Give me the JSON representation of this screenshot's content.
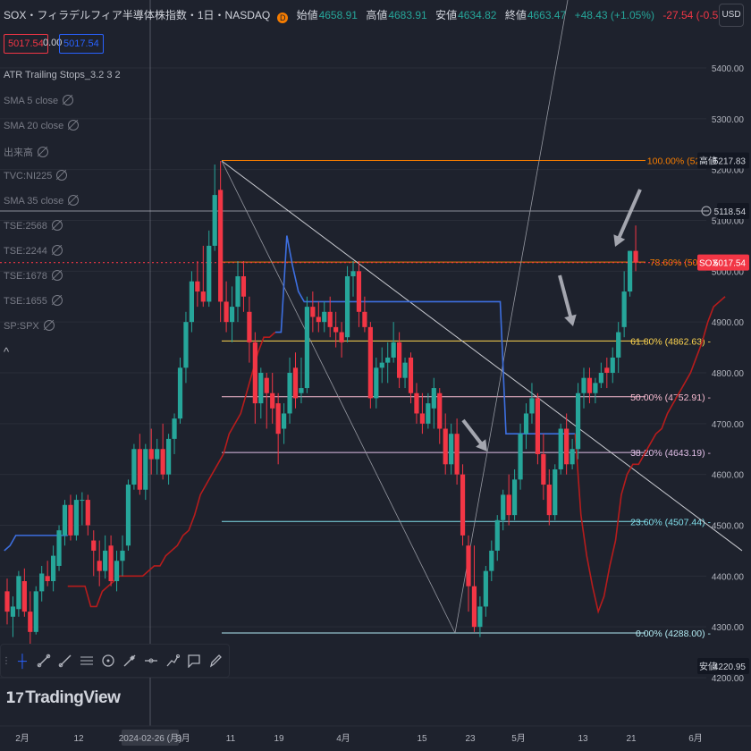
{
  "header": {
    "symbol_title": "SOX・フィラデルフィア半導体株指数・1日・NASDAQ",
    "badge": "D",
    "open_label": "始値",
    "open": "4658.91",
    "high_label": "高値",
    "high": "4683.91",
    "low_label": "安値",
    "low": "4634.82",
    "close_label": "終値",
    "close": "4663.47",
    "change": "+48.43 (+1.05%)",
    "change2": "-27.54 (-0.55%)"
  },
  "price_boxes": {
    "left": "5017.54",
    "mid": "0.00",
    "right": "5017.54"
  },
  "indicators": [
    {
      "label": "ATR Trailing Stops_3.2 3 2",
      "visible": true
    },
    {
      "label": "SMA 5 close",
      "visible": false
    },
    {
      "label": "SMA 20 close",
      "visible": false
    },
    {
      "label": "出来高",
      "visible": false
    },
    {
      "label": "TVC:NI225",
      "visible": false
    },
    {
      "label": "SMA 35 close",
      "visible": false
    },
    {
      "label": "TSE:2568",
      "visible": false
    },
    {
      "label": "TSE:2244",
      "visible": false
    },
    {
      "label": "TSE:1678",
      "visible": false
    },
    {
      "label": "TSE:1655",
      "visible": false
    },
    {
      "label": "SP:SPX",
      "visible": false
    }
  ],
  "currency_button": "USD",
  "collapse_icon": "^",
  "toolbar_icons": [
    "dots-handle-icon",
    "crosshair-icon",
    "trendline-icon",
    "ray-icon",
    "parallel-channel-icon",
    "circle-icon",
    "brush-icon",
    "measure-icon",
    "path-icon",
    "callout-icon",
    "pencil-icon"
  ],
  "logo_text": "TradingView",
  "colors": {
    "bg": "#1e222d",
    "up": "#26a69a",
    "down": "#f23645",
    "atr_up": "#3d6fe0",
    "atr_down": "#b71c1c"
  },
  "chart_data": {
    "type": "candlestick",
    "y_axis": {
      "ticks": [
        5400,
        5300,
        5200,
        5100,
        5000,
        4900,
        4800,
        4700,
        4600,
        4500,
        4400,
        4300,
        4200
      ],
      "labels": [
        "5400.00",
        "5300.00",
        "5200.00",
        "5100.00",
        "5000.00",
        "4900.00",
        "4800.00",
        "4700.00",
        "4600.00",
        "4500.00",
        "4400.00",
        "4300.00",
        "4200.00"
      ],
      "range": [
        4150,
        5550
      ]
    },
    "x_axis": {
      "labels": [
        "2月",
        "12",
        "2024-02-26 (月)",
        "3月",
        "11",
        "19",
        "4月",
        "15",
        "23",
        "5月",
        "13",
        "21",
        "6月"
      ]
    },
    "fib_levels": [
      {
        "ratio": 1.0,
        "label": "100.00% (5217",
        "price": 5217.83,
        "color": "#f57c00"
      },
      {
        "ratio": 0.786,
        "label": "78.60% (5018.",
        "price": 5018.0,
        "color": "#f57c00"
      },
      {
        "ratio": 0.618,
        "label": "61.80% (4862.63)",
        "price": 4862.63,
        "color": "#ffd54f"
      },
      {
        "ratio": 0.5,
        "label": "50.00% (4752.91)",
        "price": 4752.91,
        "color": "#f8bbd0"
      },
      {
        "ratio": 0.382,
        "label": "38.20% (4643.19)",
        "price": 4643.19,
        "color": "#e1bee7"
      },
      {
        "ratio": 0.236,
        "label": "23.60% (4507.44)",
        "price": 4507.44,
        "color": "#80deea"
      },
      {
        "ratio": 0.0,
        "label": "0.00% (4288.00)",
        "price": 4288.0,
        "color": "#b2ebf2"
      }
    ],
    "axis_badges": [
      {
        "label": "高値",
        "value": "5217.83",
        "bg": "#131722",
        "color": "#d1d4dc"
      },
      {
        "label": "",
        "value": "5118.54",
        "bg": "#131722",
        "color": "#d1d4dc"
      },
      {
        "label": "SOX",
        "value": "5017.54",
        "bg": "#f23645",
        "color": "#ffffff"
      },
      {
        "label": "安値",
        "value": "4220.95",
        "bg": "#131722",
        "color": "#d1d4dc"
      }
    ],
    "hline": 5118.54,
    "candles": [
      [
        4370,
        4395,
        4305,
        4330
      ],
      [
        4320,
        4360,
        4280,
        4340
      ],
      [
        4335,
        4410,
        4320,
        4400
      ],
      [
        4390,
        4415,
        4320,
        4330
      ],
      [
        4330,
        4370,
        4250,
        4290
      ],
      [
        4290,
        4380,
        4285,
        4370
      ],
      [
        4370,
        4420,
        4350,
        4405
      ],
      [
        4400,
        4430,
        4380,
        4390
      ],
      [
        4390,
        4460,
        4370,
        4440
      ],
      [
        4420,
        4500,
        4410,
        4490
      ],
      [
        4480,
        4550,
        4460,
        4540
      ],
      [
        4540,
        4560,
        4470,
        4480
      ],
      [
        4480,
        4560,
        4470,
        4550
      ],
      [
        4550,
        4565,
        4500,
        4550
      ],
      [
        4550,
        4560,
        4480,
        4500
      ],
      [
        4470,
        4490,
        4400,
        4450
      ],
      [
        4430,
        4470,
        4380,
        4410
      ],
      [
        4410,
        4480,
        4395,
        4450
      ],
      [
        4460,
        4480,
        4380,
        4390
      ],
      [
        4390,
        4450,
        4370,
        4430
      ],
      [
        4430,
        4480,
        4400,
        4450
      ],
      [
        4460,
        4590,
        4450,
        4580
      ],
      [
        4580,
        4660,
        4570,
        4650
      ],
      [
        4650,
        4680,
        4560,
        4570
      ],
      [
        4570,
        4660,
        4550,
        4650
      ],
      [
        4650,
        4690,
        4600,
        4630
      ],
      [
        4630,
        4670,
        4600,
        4650
      ],
      [
        4650,
        4700,
        4590,
        4600
      ],
      [
        4600,
        4680,
        4580,
        4670
      ],
      [
        4670,
        4720,
        4640,
        4710
      ],
      [
        4710,
        4830,
        4700,
        4810
      ],
      [
        4810,
        4920,
        4780,
        4900
      ],
      [
        4900,
        5000,
        4880,
        4980
      ],
      [
        4980,
        5020,
        4930,
        4960
      ],
      [
        4960,
        5050,
        4930,
        4940
      ],
      [
        4940,
        5080,
        4930,
        5050
      ],
      [
        5050,
        5210,
        5040,
        5150
      ],
      [
        5160,
        5217,
        4900,
        4940
      ],
      [
        4940,
        4980,
        4880,
        4900
      ],
      [
        4900,
        4970,
        4860,
        4930
      ],
      [
        4930,
        5020,
        4900,
        4990
      ],
      [
        4990,
        5020,
        4920,
        4950
      ],
      [
        4920,
        4950,
        4820,
        4860
      ],
      [
        4860,
        4880,
        4700,
        4740
      ],
      [
        4740,
        4810,
        4710,
        4800
      ],
      [
        4790,
        4800,
        4690,
        4760
      ],
      [
        4760,
        4800,
        4700,
        4730
      ],
      [
        4740,
        4760,
        4620,
        4680
      ],
      [
        4690,
        4740,
        4660,
        4720
      ],
      [
        4720,
        4830,
        4700,
        4800
      ],
      [
        4810,
        4840,
        4730,
        4750
      ],
      [
        4760,
        4830,
        4740,
        4770
      ],
      [
        4770,
        4950,
        4760,
        4930
      ],
      [
        4930,
        4960,
        4880,
        4910
      ],
      [
        4910,
        4940,
        4880,
        4900
      ],
      [
        4900,
        4940,
        4880,
        4920
      ],
      [
        4920,
        4950,
        4870,
        4890
      ],
      [
        4890,
        4920,
        4850,
        4880
      ],
      [
        4880,
        4900,
        4830,
        4860
      ],
      [
        4870,
        5010,
        4860,
        4990
      ],
      [
        4990,
        5020,
        4950,
        5000
      ],
      [
        5000,
        5020,
        4890,
        4920
      ],
      [
        4920,
        4950,
        4880,
        4890
      ],
      [
        4890,
        4900,
        4730,
        4750
      ],
      [
        4750,
        4830,
        4730,
        4810
      ],
      [
        4810,
        4850,
        4780,
        4820
      ],
      [
        4820,
        4860,
        4780,
        4830
      ],
      [
        4830,
        4900,
        4820,
        4860
      ],
      [
        4860,
        4880,
        4770,
        4790
      ],
      [
        4790,
        4830,
        4770,
        4820
      ],
      [
        4830,
        4840,
        4740,
        4760
      ],
      [
        4760,
        4780,
        4700,
        4720
      ],
      [
        4720,
        4760,
        4680,
        4700
      ],
      [
        4700,
        4760,
        4690,
        4740
      ],
      [
        4730,
        4790,
        4690,
        4770
      ],
      [
        4760,
        4770,
        4660,
        4690
      ],
      [
        4690,
        4720,
        4600,
        4620
      ],
      [
        4620,
        4700,
        4600,
        4680
      ],
      [
        4680,
        4710,
        4580,
        4600
      ],
      [
        4600,
        4620,
        4460,
        4480
      ],
      [
        4460,
        4480,
        4330,
        4380
      ],
      [
        4380,
        4460,
        4290,
        4300
      ],
      [
        4300,
        4360,
        4280,
        4340
      ],
      [
        4340,
        4420,
        4320,
        4410
      ],
      [
        4410,
        4470,
        4390,
        4450
      ],
      [
        4450,
        4520,
        4430,
        4510
      ],
      [
        4510,
        4570,
        4490,
        4560
      ],
      [
        4560,
        4600,
        4500,
        4520
      ],
      [
        4520,
        4610,
        4510,
        4590
      ],
      [
        4590,
        4700,
        4570,
        4680
      ],
      [
        4680,
        4740,
        4650,
        4720
      ],
      [
        4720,
        4780,
        4700,
        4750
      ],
      [
        4750,
        4760,
        4620,
        4640
      ],
      [
        4640,
        4680,
        4550,
        4580
      ],
      [
        4580,
        4610,
        4500,
        4520
      ],
      [
        4520,
        4620,
        4510,
        4610
      ],
      [
        4610,
        4700,
        4600,
        4690
      ],
      [
        4690,
        4720,
        4600,
        4620
      ],
      [
        4620,
        4670,
        4610,
        4650
      ],
      [
        4650,
        4780,
        4630,
        4760
      ],
      [
        4760,
        4810,
        4730,
        4790
      ],
      [
        4790,
        4810,
        4740,
        4760
      ],
      [
        4760,
        4790,
        4740,
        4780
      ],
      [
        4780,
        4820,
        4770,
        4800
      ],
      [
        4810,
        4830,
        4770,
        4800
      ],
      [
        4800,
        4850,
        4780,
        4830
      ],
      [
        4830,
        4900,
        4800,
        4880
      ],
      [
        4890,
        5000,
        4870,
        4960
      ],
      [
        4960,
        5040,
        4950,
        5040
      ],
      [
        5040,
        5090,
        5000,
        5017
      ]
    ],
    "atr_stop": {
      "segments": [
        {
          "trend": "up",
          "values": [
            4450,
            4460,
            4480,
            4480,
            4480,
            4480,
            4480,
            4480,
            4480,
            4480,
            4480,
            4480
          ]
        },
        {
          "trend": "down",
          "values": [
            4380,
            4380,
            4380,
            4380,
            4340,
            4340,
            4370,
            4380,
            4390,
            4400,
            4400,
            4400,
            4400,
            4400,
            4410,
            4420,
            4420,
            4440,
            4450,
            4460,
            4480,
            4490,
            4520,
            4560,
            4580,
            4600,
            4620,
            4640,
            4680,
            4700,
            4720,
            4760,
            4800,
            4840,
            4870,
            4870,
            4880
          ]
        },
        {
          "trend": "up",
          "values": [
            4880,
            4880,
            5070,
            5010,
            4960,
            4940,
            4940,
            4940,
            4940,
            4940,
            4940,
            4940,
            4940,
            4940,
            4940,
            4940,
            4940,
            4940,
            4940,
            4940,
            4940,
            4940,
            4940,
            4940,
            4940,
            4940,
            4940,
            4940,
            4940,
            4940,
            4940,
            4940,
            4940,
            4940,
            4940,
            4940,
            4940,
            4940,
            4940,
            4940,
            4680,
            4680,
            4680,
            4680,
            4680,
            4680,
            4680,
            4680,
            4680,
            4680,
            4680,
            4680,
            4680
          ]
        },
        {
          "trend": "down",
          "values": [
            4680,
            4520,
            4440,
            4380,
            4330,
            4360,
            4420,
            4470,
            4560,
            4600,
            4620,
            4620,
            4640,
            4660,
            4680,
            4690,
            4720,
            4740,
            4760,
            4780,
            4800,
            4830,
            4860,
            4900,
            4930,
            4940,
            4950
          ]
        }
      ]
    }
  }
}
